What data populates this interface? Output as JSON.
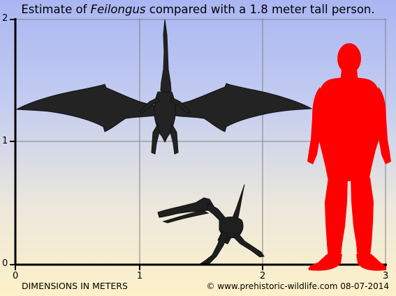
{
  "title": {
    "prefix": "Estimate of ",
    "species": "Feilongus",
    "suffix": " compared with a 1.8 meter tall person."
  },
  "axes": {
    "y_ticks": [
      "2",
      "1",
      "0"
    ],
    "x_ticks": [
      "0",
      "1",
      "2",
      "3"
    ],
    "caption": "DIMENSIONS IN METERS"
  },
  "credit": "© www.prehistoric-wildlife.com 08-07-2014",
  "colors": {
    "background_top": "#aab6f2",
    "background_bottom": "#fdf1c8",
    "grid": "#7f7f7f",
    "axis": "#000000",
    "pterosaur": "#222222",
    "person": "#ff0000"
  },
  "figures": [
    {
      "name": "Feilongus (dorsal view, wings spread)"
    },
    {
      "name": "Feilongus (side view, standing)"
    },
    {
      "name": "Human silhouette",
      "height_m": 1.8
    }
  ]
}
